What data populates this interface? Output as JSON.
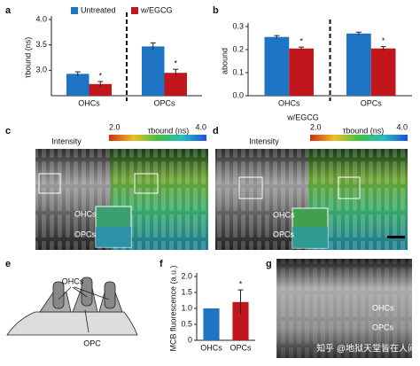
{
  "panels": {
    "labels": [
      "a",
      "b",
      "c",
      "d",
      "e",
      "f",
      "g"
    ]
  },
  "chart_data": [
    {
      "type": "bar",
      "ylabel": "τbound (ns)",
      "categories": [
        "OHCs",
        "OPCs"
      ],
      "series": [
        {
          "name": "Untreated",
          "color": "#1f74c4",
          "values": [
            2.93,
            3.47
          ],
          "errors": [
            0.04,
            0.07
          ]
        },
        {
          "name": "w/EGCG",
          "color": "#c0161c",
          "values": [
            2.73,
            2.95
          ],
          "errors": [
            0.05,
            0.07
          ]
        }
      ],
      "significance": [
        "*",
        "*"
      ],
      "ylim": [
        2.5,
        4.0
      ],
      "yticks": [
        {
          "value": 3.0,
          "label": "3.0"
        },
        3.5,
        {
          "value": 4.0,
          "label": "4.0"
        }
      ],
      "legend": "top",
      "divider": true
    },
    {
      "type": "bar",
      "ylabel": "abound",
      "categories": [
        "OHCs",
        "OPCs"
      ],
      "series": [
        {
          "name": "Untreated",
          "color": "#1f74c4",
          "values": [
            0.255,
            0.27
          ],
          "errors": [
            0.006,
            0.006
          ]
        },
        {
          "name": "w/EGCG",
          "color": "#c0161c",
          "values": [
            0.205,
            0.205
          ],
          "errors": [
            0.006,
            0.008
          ]
        }
      ],
      "significance": [
        "*",
        "*"
      ],
      "ylim": [
        0,
        0.3
      ],
      "yticks": [
        {
          "value": 0,
          "label": "0.0"
        },
        0.1,
        0.2,
        0.3
      ],
      "divider": true
    },
    {
      "type": "bar",
      "ylabel": "MCB fluorescence (a.u.)",
      "categories": [
        "OHCs",
        "OPCs"
      ],
      "values": [
        1.0,
        1.2
      ],
      "colors": [
        "#1f74c4",
        "#c0161c"
      ],
      "errors": [
        null,
        0.38
      ],
      "significance": [
        null,
        "*"
      ],
      "ylim": [
        0,
        2.0
      ],
      "yticks": [
        {
          "value": 0,
          "label": "0"
        },
        0.5,
        {
          "value": 1.0,
          "label": "1.0"
        },
        1.5,
        {
          "value": 2.0,
          "label": "2.0"
        }
      ]
    }
  ],
  "images": {
    "c": {
      "channel": "Intensity",
      "colorbar_title": "τbound (ns)",
      "colorbar_min": "2.0",
      "colorbar_max": "4.0",
      "region1": "OHCs",
      "region2": "OPCs"
    },
    "d": {
      "condition": "w/EGCG",
      "channel": "Intensity",
      "colorbar_title": "τbound (ns)",
      "colorbar_min": "2.0",
      "colorbar_max": "4.0",
      "region1": "OHCs",
      "region2": "OPCs"
    },
    "g": {
      "region1": "OHCs",
      "region2": "OPCs"
    }
  },
  "diagram": {
    "cells": "OHCs",
    "support": "OPC"
  },
  "watermark": "知乎 @地狱天堂皆在人间"
}
